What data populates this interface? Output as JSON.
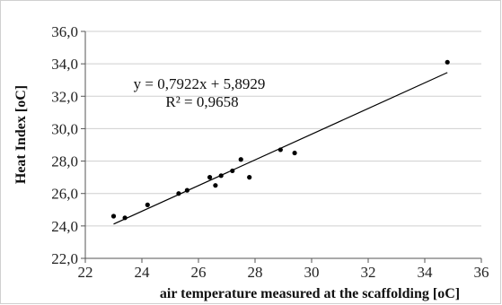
{
  "chart_data": {
    "type": "scatter",
    "xlabel": "air temperature measured at the scaffolding [oC]",
    "ylabel": "Heat Index [oC]",
    "xlim": [
      22,
      36
    ],
    "ylim": [
      22,
      36
    ],
    "x_ticks": [
      "22",
      "24",
      "26",
      "28",
      "30",
      "32",
      "34",
      "36"
    ],
    "y_ticks": [
      "22,0",
      "24,0",
      "26,0",
      "28,0",
      "30,0",
      "32,0",
      "34,0",
      "36,0"
    ],
    "grid": "horizontal",
    "points": [
      {
        "x": 23.0,
        "y": 24.6
      },
      {
        "x": 23.4,
        "y": 24.5
      },
      {
        "x": 24.2,
        "y": 25.3
      },
      {
        "x": 25.3,
        "y": 26.0
      },
      {
        "x": 25.6,
        "y": 26.2
      },
      {
        "x": 26.4,
        "y": 27.0
      },
      {
        "x": 26.6,
        "y": 26.5
      },
      {
        "x": 26.8,
        "y": 27.1
      },
      {
        "x": 27.2,
        "y": 27.4
      },
      {
        "x": 27.5,
        "y": 28.1
      },
      {
        "x": 27.8,
        "y": 27.0
      },
      {
        "x": 28.9,
        "y": 28.7
      },
      {
        "x": 29.4,
        "y": 28.5
      },
      {
        "x": 34.8,
        "y": 34.1
      }
    ],
    "trendline": {
      "slope": 0.7922,
      "intercept": 5.8929,
      "x_range": [
        23.0,
        34.8
      ],
      "equation": "y = 0,7922x + 5,8929",
      "r_squared": "R² = 0,9658"
    }
  }
}
